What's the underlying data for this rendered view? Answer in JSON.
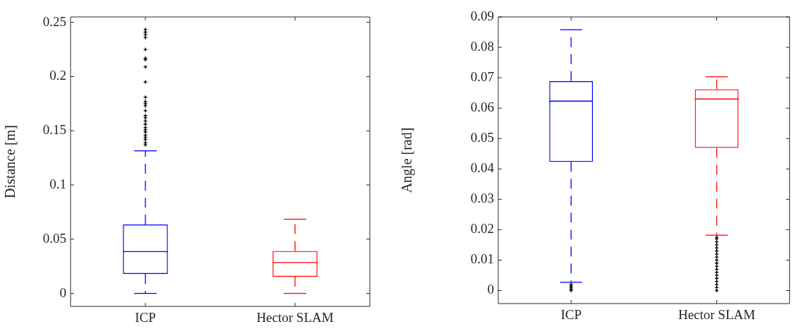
{
  "chart_data": [
    {
      "type": "box",
      "ylabel": "Distance [m]",
      "categories": [
        "ICP",
        "Hector SLAM"
      ],
      "colors": [
        "#0000ff",
        "#ff0000"
      ],
      "marker": "cross",
      "ylim": [
        -0.012,
        0.255
      ],
      "yticks": [
        0,
        0.05,
        0.1,
        0.15,
        0.2,
        0.25
      ],
      "boxes": [
        {
          "low": 0,
          "q1": 0.018,
          "median": 0.0386,
          "q3": 0.0636,
          "high": 0.1315,
          "outliers": [
            0.137,
            0.139,
            0.142,
            0.144,
            0.146,
            0.149,
            0.151,
            0.153,
            0.156,
            0.159,
            0.162,
            0.164,
            0.1685,
            0.173,
            0.175,
            0.177,
            0.181,
            0.195,
            0.209,
            0.2156,
            0.217,
            0.225,
            0.236,
            0.2387,
            0.241,
            0.2435
          ]
        },
        {
          "low": 0,
          "q1": 0.0154,
          "median": 0.0284,
          "q3": 0.0391,
          "high": 0.0684
        }
      ]
    },
    {
      "type": "box",
      "ylabel": "Angle [rad]",
      "categories": [
        "ICP",
        "Hector SLAM"
      ],
      "colors": [
        "#0000ff",
        "#ff0000"
      ],
      "marker": "cross",
      "ylim": [
        -0.0043,
        0.09
      ],
      "yticks": [
        0,
        0.01,
        0.02,
        0.03,
        0.04,
        0.05,
        0.06,
        0.07,
        0.08,
        0.09
      ],
      "boxes": [
        {
          "low": 0.0027,
          "q1": 0.0423,
          "median": 0.0623,
          "q3": 0.0689,
          "high": 0.0858,
          "outliers": [
            0,
            0.0005,
            0.001,
            0.0015,
            0.002
          ]
        },
        {
          "low": 0.0182,
          "q1": 0.0469,
          "median": 0.063,
          "q3": 0.0662,
          "high": 0.0703,
          "outliers": [
            0,
            0.001,
            0.002,
            0.003,
            0.004,
            0.005,
            0.006,
            0.007,
            0.008,
            0.009,
            0.01,
            0.011,
            0.012,
            0.013,
            0.014,
            0.015,
            0.016,
            0.017,
            0.0175
          ]
        }
      ]
    }
  ]
}
